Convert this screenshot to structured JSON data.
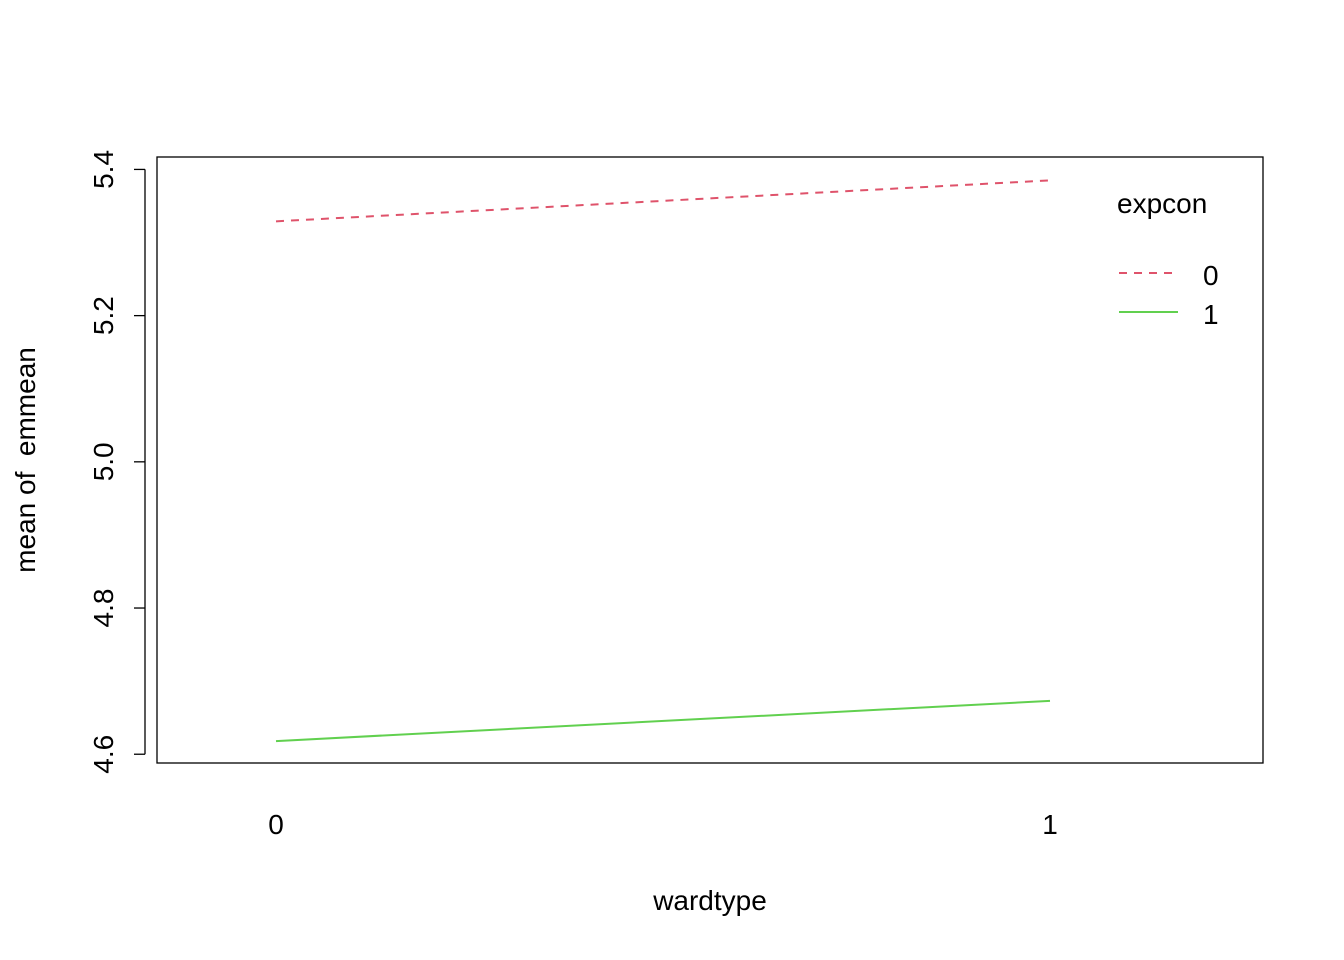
{
  "chart_data": {
    "type": "line",
    "title": "",
    "xlabel": "wardtype",
    "ylabel": "mean of  emmean",
    "categories": [
      "0",
      "1"
    ],
    "yticks": [
      4.6,
      4.8,
      5.0,
      5.2,
      5.4
    ],
    "ytick_labels": [
      "4.6",
      "4.8",
      "5.0",
      "5.2",
      "5.4"
    ],
    "ylim": [
      4.588,
      5.417
    ],
    "grid": false,
    "legend": {
      "title": "expcon",
      "position": "top-right"
    },
    "series": [
      {
        "name": "0",
        "values": [
          5.329,
          5.385
        ],
        "color": "#DF536B",
        "dash": "dashed"
      },
      {
        "name": "1",
        "values": [
          4.618,
          4.673
        ],
        "color": "#61D04F",
        "dash": "solid"
      }
    ]
  }
}
